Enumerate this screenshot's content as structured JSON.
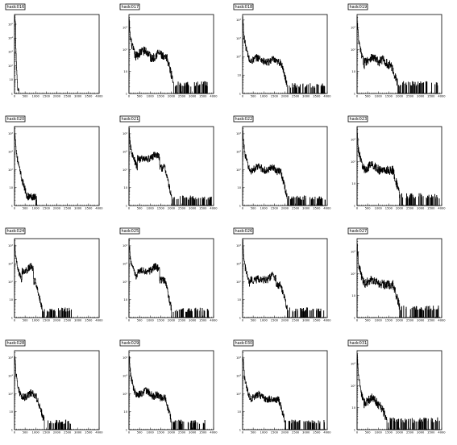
{
  "chart_data": [
    {
      "type": "histogram",
      "title": "hadc016",
      "log_y": true,
      "xlim": [
        0,
        4000
      ],
      "x_ticks": [
        "0",
        "500",
        "1000",
        "1500",
        "2000",
        "2500",
        "3000",
        "3500",
        "4000"
      ],
      "y_ticks": [
        "1",
        "10",
        "10²",
        "10³",
        "10⁴",
        "10⁵"
      ],
      "ylim_decades": [
        0,
        5.7
      ],
      "shape": {
        "spike": 5.6,
        "decay_to": 0.2,
        "decay_end": 150,
        "bumps": [],
        "tail_end": 200,
        "tail_level": 0.0,
        "noise": 0.3
      }
    },
    {
      "type": "histogram",
      "title": "hadc017",
      "log_y": true,
      "xlim": [
        0,
        4000
      ],
      "x_ticks": [
        "0",
        "500",
        "1000",
        "1500",
        "2000",
        "2500",
        "3000",
        "3500",
        "4000"
      ],
      "y_ticks": [
        "1",
        "10",
        "10²",
        "10³"
      ],
      "ylim_decades": [
        0,
        3.6
      ],
      "shape": {
        "spike": 3.4,
        "decay_to": 1.6,
        "decay_end": 350,
        "bumps": [
          {
            "x": 700,
            "h": 1.7,
            "w": 250
          },
          {
            "x": 1400,
            "h": 1.6,
            "w": 180
          }
        ],
        "fall": 1800,
        "tail_end": 3700,
        "tail_level": 0.3,
        "noise": 0.4
      }
    },
    {
      "type": "histogram",
      "title": "hadc018",
      "log_y": true,
      "xlim": [
        0,
        4000
      ],
      "x_ticks": [
        "0",
        "500",
        "1000",
        "1500",
        "2000",
        "2500",
        "3000",
        "3500",
        "4000"
      ],
      "y_ticks": [
        "1",
        "10",
        "10²",
        "10³",
        "10⁴"
      ],
      "ylim_decades": [
        0,
        4.3
      ],
      "shape": {
        "spike": 4.1,
        "decay_to": 1.7,
        "decay_end": 350,
        "bumps": [
          {
            "x": 700,
            "h": 1.7,
            "w": 250
          },
          {
            "x": 1400,
            "h": 1.6,
            "w": 180
          }
        ],
        "fall": 1800,
        "tail_end": 3900,
        "tail_level": 0.3,
        "noise": 0.4
      }
    },
    {
      "type": "histogram",
      "title": "hadc019",
      "log_y": true,
      "xlim": [
        0,
        4000
      ],
      "x_ticks": [
        "0",
        "500",
        "1000",
        "1500",
        "2000",
        "2500",
        "3000",
        "3500",
        "4000"
      ],
      "y_ticks": [
        "1",
        "10",
        "10²",
        "10³"
      ],
      "ylim_decades": [
        0,
        3.6
      ],
      "shape": {
        "spike": 3.4,
        "decay_to": 1.3,
        "decay_end": 350,
        "bumps": [
          {
            "x": 700,
            "h": 1.4,
            "w": 250
          },
          {
            "x": 1200,
            "h": 1.3,
            "w": 180
          }
        ],
        "fall": 1600,
        "tail_end": 3900,
        "tail_level": 0.3,
        "noise": 0.4
      }
    },
    {
      "type": "histogram",
      "title": "hadc020",
      "log_y": true,
      "xlim": [
        0,
        4000
      ],
      "x_ticks": [
        "0",
        "500",
        "1000",
        "1500",
        "2000",
        "2500",
        "3000",
        "3500",
        "4000"
      ],
      "y_ticks": [
        "1",
        "10",
        "10²",
        "10³",
        "10⁴"
      ],
      "ylim_decades": [
        0,
        4.4
      ],
      "shape": {
        "spike": 4.3,
        "decay_to": 0.5,
        "decay_end": 600,
        "bumps": [],
        "fall": 700,
        "tail_end": 1100,
        "tail_level": 0.3,
        "noise": 0.4
      }
    },
    {
      "type": "histogram",
      "title": "hadc021",
      "log_y": true,
      "xlim": [
        0,
        4000
      ],
      "x_ticks": [
        "0",
        "500",
        "1000",
        "1500",
        "2000",
        "2500",
        "3000",
        "3500",
        "4000"
      ],
      "y_ticks": [
        "1",
        "10",
        "10²",
        "10³",
        "10⁴"
      ],
      "ylim_decades": [
        0,
        4.4
      ],
      "shape": {
        "spike": 4.2,
        "decay_to": 2.1,
        "decay_end": 400,
        "bumps": [
          {
            "x": 750,
            "h": 2.3,
            "w": 220
          },
          {
            "x": 1250,
            "h": 2.6,
            "w": 160
          }
        ],
        "fall": 1700,
        "tail_end": 3900,
        "tail_level": 0.3,
        "noise": 0.4
      }
    },
    {
      "type": "histogram",
      "title": "hadc022",
      "log_y": true,
      "xlim": [
        0,
        4000
      ],
      "x_ticks": [
        "0",
        "500",
        "1000",
        "1500",
        "2000",
        "2500",
        "3000",
        "3500",
        "4000"
      ],
      "y_ticks": [
        "1",
        "10",
        "10²",
        "10³",
        "10⁴"
      ],
      "ylim_decades": [
        0,
        4.4
      ],
      "shape": {
        "spike": 4.2,
        "decay_to": 1.9,
        "decay_end": 350,
        "bumps": [
          {
            "x": 750,
            "h": 1.9,
            "w": 250
          },
          {
            "x": 1400,
            "h": 1.9,
            "w": 180
          }
        ],
        "fall": 1800,
        "tail_end": 3900,
        "tail_level": 0.3,
        "noise": 0.4
      }
    },
    {
      "type": "histogram",
      "title": "hadc023",
      "log_y": true,
      "xlim": [
        0,
        4000
      ],
      "x_ticks": [
        "0",
        "500",
        "1000",
        "1500",
        "2000",
        "2500",
        "3000",
        "3500",
        "4000"
      ],
      "y_ticks": [
        "1",
        "10",
        "10²",
        "10³"
      ],
      "ylim_decades": [
        0,
        3.6
      ],
      "shape": {
        "spike": 3.4,
        "decay_to": 1.6,
        "decay_end": 350,
        "bumps": [
          {
            "x": 700,
            "h": 1.6,
            "w": 250
          },
          {
            "x": 1300,
            "h": 1.4,
            "w": 180
          }
        ],
        "fall": 1700,
        "tail_end": 3900,
        "tail_level": 0.3,
        "noise": 0.4
      }
    },
    {
      "type": "histogram",
      "title": "hadc024",
      "log_y": true,
      "xlim": [
        0,
        4000
      ],
      "x_ticks": [
        "0",
        "500",
        "1000",
        "1500",
        "2000",
        "2500",
        "3000",
        "3500",
        "4000"
      ],
      "y_ticks": [
        "1",
        "10",
        "10²",
        "10³",
        "10⁴"
      ],
      "ylim_decades": [
        0,
        4.4
      ],
      "shape": {
        "spike": 4.2,
        "decay_to": 2.0,
        "decay_end": 350,
        "bumps": [
          {
            "x": 750,
            "h": 2.6,
            "w": 120
          }
        ],
        "fall": 1000,
        "tail_end": 2700,
        "tail_level": 0.3,
        "noise": 0.4
      }
    },
    {
      "type": "histogram",
      "title": "hadc025",
      "log_y": true,
      "xlim": [
        0,
        4000
      ],
      "x_ticks": [
        "0",
        "500",
        "1000",
        "1500",
        "2000",
        "2500",
        "3000",
        "3500",
        "4000"
      ],
      "y_ticks": [
        "1",
        "10",
        "10²",
        "10³",
        "10⁴"
      ],
      "ylim_decades": [
        0,
        4.4
      ],
      "shape": {
        "spike": 4.2,
        "decay_to": 2.1,
        "decay_end": 400,
        "bumps": [
          {
            "x": 750,
            "h": 2.3,
            "w": 220
          },
          {
            "x": 1250,
            "h": 2.6,
            "w": 160
          }
        ],
        "fall": 1700,
        "tail_end": 3800,
        "tail_level": 0.3,
        "noise": 0.4
      }
    },
    {
      "type": "histogram",
      "title": "hadc026",
      "log_y": true,
      "xlim": [
        0,
        4000
      ],
      "x_ticks": [
        "0",
        "500",
        "1000",
        "1500",
        "2000",
        "2500",
        "3000",
        "3500",
        "4000"
      ],
      "y_ticks": [
        "1",
        "10",
        "10²",
        "10³",
        "10⁴"
      ],
      "ylim_decades": [
        0,
        4.4
      ],
      "shape": {
        "spike": 4.2,
        "decay_to": 1.8,
        "decay_end": 350,
        "bumps": [
          {
            "x": 750,
            "h": 1.9,
            "w": 250
          },
          {
            "x": 1400,
            "h": 2.1,
            "w": 150
          }
        ],
        "fall": 1800,
        "tail_end": 3900,
        "tail_level": 0.3,
        "noise": 0.4
      }
    },
    {
      "type": "histogram",
      "title": "hadc027",
      "log_y": true,
      "xlim": [
        0,
        4000
      ],
      "x_ticks": [
        "0",
        "500",
        "1000",
        "1500",
        "2000",
        "2500",
        "3000",
        "3500",
        "4000"
      ],
      "y_ticks": [
        "1",
        "10",
        "10²",
        "10³"
      ],
      "ylim_decades": [
        0,
        3.6
      ],
      "shape": {
        "spike": 3.4,
        "decay_to": 1.5,
        "decay_end": 350,
        "bumps": [
          {
            "x": 700,
            "h": 1.5,
            "w": 250
          },
          {
            "x": 1200,
            "h": 1.3,
            "w": 180
          }
        ],
        "fall": 1700,
        "tail_end": 3900,
        "tail_level": 0.3,
        "noise": 0.4
      }
    },
    {
      "type": "histogram",
      "title": "hadc028",
      "log_y": true,
      "xlim": [
        0,
        4000
      ],
      "x_ticks": [
        "0",
        "500",
        "1000",
        "1500",
        "2000",
        "2500",
        "3000",
        "3500",
        "4000"
      ],
      "y_ticks": [
        "1",
        "10",
        "10²",
        "10³",
        "10⁴"
      ],
      "ylim_decades": [
        0,
        4.4
      ],
      "shape": {
        "spike": 4.2,
        "decay_to": 1.6,
        "decay_end": 350,
        "bumps": [
          {
            "x": 800,
            "h": 1.8,
            "w": 200
          }
        ],
        "fall": 1100,
        "tail_end": 2700,
        "tail_level": 0.3,
        "noise": 0.4
      }
    },
    {
      "type": "histogram",
      "title": "hadc029",
      "log_y": true,
      "xlim": [
        0,
        4000
      ],
      "x_ticks": [
        "0",
        "500",
        "1000",
        "1500",
        "2000",
        "2500",
        "3000",
        "3500",
        "4000"
      ],
      "y_ticks": [
        "1",
        "10",
        "10²",
        "10³",
        "10⁴"
      ],
      "ylim_decades": [
        0,
        4.4
      ],
      "shape": {
        "spike": 4.2,
        "decay_to": 1.8,
        "decay_end": 350,
        "bumps": [
          {
            "x": 800,
            "h": 1.9,
            "w": 250
          },
          {
            "x": 1300,
            "h": 1.7,
            "w": 180
          }
        ],
        "fall": 1700,
        "tail_end": 3600,
        "tail_level": 0.3,
        "noise": 0.4
      }
    },
    {
      "type": "histogram",
      "title": "hadc030",
      "log_y": true,
      "xlim": [
        0,
        4000
      ],
      "x_ticks": [
        "0",
        "500",
        "1000",
        "1500",
        "2000",
        "2500",
        "3000",
        "3500",
        "4000"
      ],
      "y_ticks": [
        "1",
        "10",
        "10²",
        "10³",
        "10⁴"
      ],
      "ylim_decades": [
        0,
        4.4
      ],
      "shape": {
        "spike": 4.2,
        "decay_to": 1.7,
        "decay_end": 350,
        "bumps": [
          {
            "x": 750,
            "h": 1.7,
            "w": 250
          },
          {
            "x": 1300,
            "h": 1.4,
            "w": 180
          }
        ],
        "fall": 1700,
        "tail_end": 3900,
        "tail_level": 0.3,
        "noise": 0.4
      }
    },
    {
      "type": "histogram",
      "title": "hadc031",
      "log_y": true,
      "xlim": [
        0,
        4000
      ],
      "x_ticks": [
        "0",
        "500",
        "1000",
        "1500",
        "2000",
        "2500",
        "3000",
        "3500",
        "4000"
      ],
      "y_ticks": [
        "1",
        "10",
        "10²",
        "10³"
      ],
      "ylim_decades": [
        0,
        3.6
      ],
      "shape": {
        "spike": 3.4,
        "decay_to": 1.1,
        "decay_end": 350,
        "bumps": [
          {
            "x": 700,
            "h": 1.2,
            "w": 200
          }
        ],
        "fall": 1100,
        "tail_end": 3900,
        "tail_level": 0.3,
        "noise": 0.4
      }
    }
  ]
}
